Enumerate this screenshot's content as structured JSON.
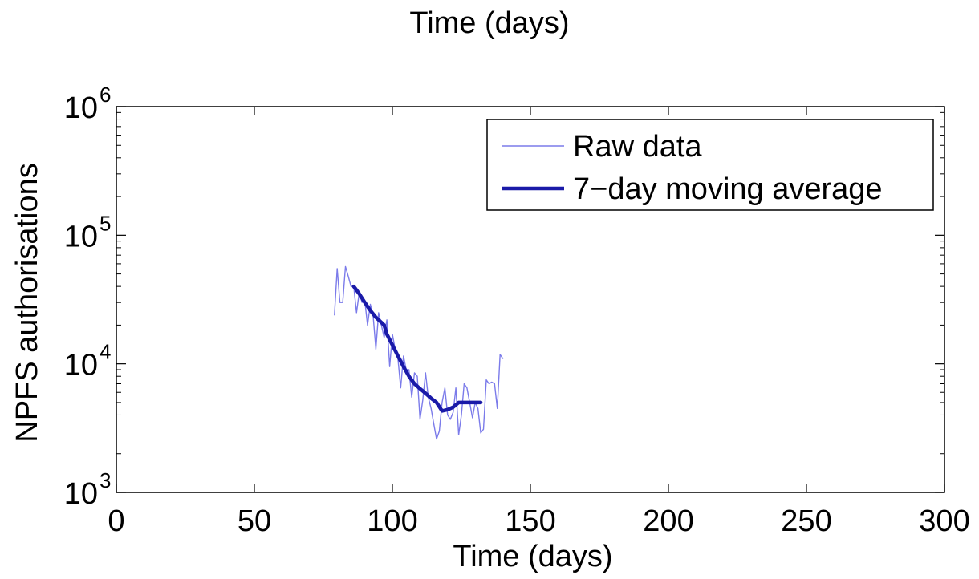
{
  "chart_data": {
    "type": "line",
    "title": "Time (days)",
    "xlabel": "Time (days)",
    "ylabel": "NPFS authorisations",
    "xlim": [
      0,
      300
    ],
    "ylim": [
      1000,
      1000000
    ],
    "yscale": "log",
    "x_ticks": [
      0,
      50,
      100,
      150,
      200,
      250,
      300
    ],
    "y_ticks": [
      {
        "value": 1000,
        "base": "10",
        "exp": "3"
      },
      {
        "value": 10000,
        "base": "10",
        "exp": "4"
      },
      {
        "value": 100000,
        "base": "10",
        "exp": "5"
      },
      {
        "value": 1000000,
        "base": "10",
        "exp": "6"
      }
    ],
    "grid": false,
    "legend": {
      "placement": "top-right"
    },
    "colors": {
      "raw": "#7b7bea",
      "average": "#1a1aa8",
      "axes": "#000000"
    },
    "series": [
      {
        "name": "Raw data",
        "style": "thin",
        "x": [
          79,
          80,
          81,
          82,
          83,
          84,
          85,
          86,
          87,
          88,
          89,
          90,
          91,
          92,
          93,
          94,
          95,
          96,
          97,
          98,
          99,
          100,
          101,
          102,
          103,
          104,
          105,
          106,
          107,
          108,
          109,
          110,
          111,
          112,
          113,
          114,
          115,
          116,
          117,
          118,
          119,
          120,
          121,
          122,
          123,
          124,
          125,
          126,
          127,
          128,
          129,
          130,
          131,
          132,
          133,
          134,
          135,
          136,
          137,
          138,
          139,
          140
        ],
        "y": [
          24000,
          55000,
          30000,
          30000,
          57000,
          48000,
          40000,
          40000,
          25000,
          36000,
          30000,
          31000,
          20000,
          29000,
          24000,
          13000,
          25000,
          20000,
          16000,
          22000,
          9500,
          17000,
          13000,
          11000,
          6500,
          11500,
          9000,
          9000,
          5500,
          8500,
          8000,
          3700,
          5200,
          8500,
          5500,
          4500,
          3400,
          2600,
          3000,
          5000,
          6500,
          4000,
          3700,
          4200,
          6500,
          2800,
          4000,
          7000,
          6500,
          5000,
          3800,
          5000,
          4500,
          2900,
          3100,
          7500,
          7000,
          7200,
          7000,
          4500,
          11800,
          11000
        ]
      },
      {
        "name": "7−day moving average",
        "style": "thick",
        "x": [
          86,
          88,
          90,
          92,
          94,
          96,
          97,
          98,
          100,
          102,
          104,
          106,
          108,
          110,
          112,
          114,
          116,
          118,
          120,
          122,
          124,
          126,
          128,
          130,
          132
        ],
        "y": [
          40000,
          35000,
          30000,
          26000,
          23000,
          21000,
          20000,
          17000,
          14000,
          11500,
          9500,
          8000,
          7000,
          6400,
          5900,
          5400,
          5000,
          4300,
          4400,
          4600,
          5000,
          5000,
          5000,
          5000,
          5000
        ]
      }
    ]
  }
}
